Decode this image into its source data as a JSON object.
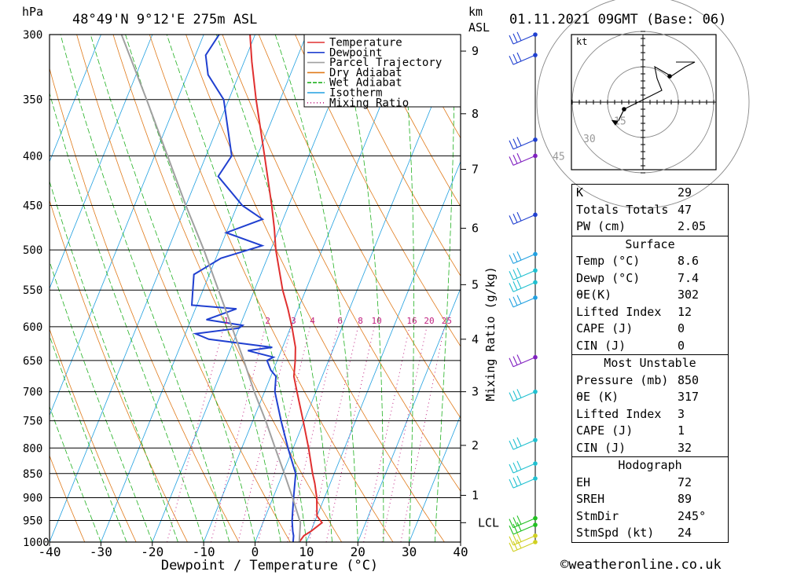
{
  "header": {
    "pressure_unit": "hPa",
    "location": "48°49'N  9°12'E  275m  ASL",
    "km_unit": "km",
    "asl_unit": "ASL",
    "datetime": "01.11.2021  09GMT  (Base: 06)"
  },
  "legend": [
    {
      "label": "Temperature",
      "color": "#e03030",
      "style": "solid"
    },
    {
      "label": "Dewpoint",
      "color": "#2040d0",
      "style": "solid"
    },
    {
      "label": "Parcel Trajectory",
      "color": "#a0a0a0",
      "style": "solid"
    },
    {
      "label": "Dry Adiabat",
      "color": "#e07a1a",
      "style": "solid"
    },
    {
      "label": "Wet Adiabat",
      "color": "#20b020",
      "style": "dashed"
    },
    {
      "label": "Isotherm",
      "color": "#20a0e0",
      "style": "solid"
    },
    {
      "label": "Mixing Ratio",
      "color": "#c02080",
      "style": "dotted"
    }
  ],
  "chart_data": {
    "type": "line",
    "subtype": "skew-t log-p sounding",
    "xlabel": "Dewpoint / Temperature (°C)",
    "ylabel": "hPa",
    "xlim": [
      -40,
      40
    ],
    "ylim": [
      1000,
      300
    ],
    "y_scale": "log",
    "x_ticks": [
      -40,
      -30,
      -20,
      -10,
      0,
      10,
      20,
      30,
      40
    ],
    "pressure_levels": [
      300,
      350,
      400,
      450,
      500,
      550,
      600,
      650,
      700,
      750,
      800,
      850,
      900,
      950,
      1000
    ],
    "height_axis": {
      "label": "km ASL",
      "ticks": [
        {
          "label": "9",
          "p": 312
        },
        {
          "label": "8",
          "p": 362
        },
        {
          "label": "7",
          "p": 413
        },
        {
          "label": "6",
          "p": 475
        },
        {
          "label": "5",
          "p": 543
        },
        {
          "label": "4",
          "p": 618
        },
        {
          "label": "3",
          "p": 700
        },
        {
          "label": "2",
          "p": 795
        },
        {
          "label": "1",
          "p": 895
        },
        {
          "label": "LCL",
          "p": 955
        }
      ]
    },
    "mixing_ratio_axis": {
      "label": "Mixing Ratio (g/kg)",
      "values": [
        "1",
        "2",
        "3",
        "4",
        "6",
        "8",
        "10",
        "16",
        "20",
        "25"
      ]
    },
    "series": [
      {
        "name": "Temperature",
        "color": "#e03030",
        "points": [
          [
            1000,
            8.6
          ],
          [
            985,
            9.0
          ],
          [
            975,
            10.0
          ],
          [
            955,
            11.5
          ],
          [
            940,
            10.0
          ],
          [
            900,
            8.5
          ],
          [
            870,
            7.0
          ],
          [
            850,
            5.8
          ],
          [
            800,
            3.0
          ],
          [
            750,
            -0.2
          ],
          [
            700,
            -3.7
          ],
          [
            675,
            -5.5
          ],
          [
            650,
            -6.5
          ],
          [
            630,
            -7.5
          ],
          [
            600,
            -9.8
          ],
          [
            575,
            -12.0
          ],
          [
            550,
            -14.5
          ],
          [
            500,
            -19.0
          ],
          [
            475,
            -21.0
          ],
          [
            450,
            -23.3
          ],
          [
            400,
            -28.6
          ],
          [
            350,
            -34.7
          ],
          [
            320,
            -38.5
          ],
          [
            300,
            -41.0
          ]
        ]
      },
      {
        "name": "Dewpoint",
        "color": "#2040d0",
        "points": [
          [
            1000,
            7.4
          ],
          [
            985,
            7.0
          ],
          [
            975,
            6.5
          ],
          [
            950,
            5.5
          ],
          [
            900,
            4.0
          ],
          [
            850,
            2.5
          ],
          [
            800,
            -1.0
          ],
          [
            750,
            -4.5
          ],
          [
            700,
            -8.0
          ],
          [
            675,
            -9.0
          ],
          [
            665,
            -10.5
          ],
          [
            650,
            -12.0
          ],
          [
            645,
            -11.0
          ],
          [
            635,
            -16.5
          ],
          [
            630,
            -12.0
          ],
          [
            618,
            -25.0
          ],
          [
            610,
            -28.0
          ],
          [
            602,
            -20.0
          ],
          [
            598,
            -19.5
          ],
          [
            590,
            -27.0
          ],
          [
            575,
            -22.0
          ],
          [
            570,
            -31.0
          ],
          [
            530,
            -33.0
          ],
          [
            510,
            -29.0
          ],
          [
            495,
            -22.0
          ],
          [
            480,
            -30.0
          ],
          [
            465,
            -24.0
          ],
          [
            450,
            -29.0
          ],
          [
            420,
            -36.0
          ],
          [
            400,
            -35.0
          ],
          [
            350,
            -41.0
          ],
          [
            330,
            -46.0
          ],
          [
            315,
            -48.0
          ],
          [
            300,
            -47.0
          ]
        ]
      },
      {
        "name": "Parcel Trajectory",
        "color": "#a0a0a0",
        "points": [
          [
            1000,
            8.6
          ],
          [
            955,
            7.3
          ],
          [
            900,
            3.8
          ],
          [
            850,
            0.3
          ],
          [
            800,
            -3.5
          ],
          [
            750,
            -7.5
          ],
          [
            700,
            -12.0
          ],
          [
            650,
            -16.5
          ],
          [
            600,
            -21.5
          ],
          [
            550,
            -27.0
          ],
          [
            500,
            -33.0
          ],
          [
            450,
            -40.0
          ],
          [
            400,
            -47.5
          ],
          [
            350,
            -56.0
          ],
          [
            300,
            -66.0
          ]
        ]
      }
    ],
    "wind_profile": [
      {
        "p": 300,
        "color": "#2040d0"
      },
      {
        "p": 315,
        "color": "#2040d0"
      },
      {
        "p": 385,
        "color": "#2040d0"
      },
      {
        "p": 400,
        "color": "#8020c0"
      },
      {
        "p": 460,
        "color": "#2040d0"
      },
      {
        "p": 505,
        "color": "#20a0e0"
      },
      {
        "p": 525,
        "color": "#20c0d0"
      },
      {
        "p": 540,
        "color": "#20c0d0"
      },
      {
        "p": 560,
        "color": "#20a0e0"
      },
      {
        "p": 645,
        "color": "#8020c0"
      },
      {
        "p": 700,
        "color": "#20c0d0"
      },
      {
        "p": 785,
        "color": "#20c0d0"
      },
      {
        "p": 830,
        "color": "#20c0d0"
      },
      {
        "p": 860,
        "color": "#20c0d0"
      },
      {
        "p": 945,
        "color": "#20c020"
      },
      {
        "p": 960,
        "color": "#20c020"
      },
      {
        "p": 985,
        "color": "#d0d020"
      },
      {
        "p": 1000,
        "color": "#d0d020"
      }
    ],
    "hodograph": {
      "unit": "kt",
      "rings": [
        15,
        30,
        45
      ],
      "path": [
        [
          -8,
          -3
        ],
        [
          2,
          2
        ],
        [
          8,
          5
        ],
        [
          6,
          10
        ],
        [
          5,
          15
        ],
        [
          12,
          11
        ],
        [
          18,
          15
        ],
        [
          22,
          17
        ],
        [
          14,
          17
        ]
      ],
      "storm_motion": {
        "dir_deg": 245,
        "speed_kt": 24
      }
    }
  },
  "indices": {
    "summary": [
      {
        "label": "K",
        "value": "29"
      },
      {
        "label": "Totals Totals",
        "value": "47"
      },
      {
        "label": "PW (cm)",
        "value": "2.05"
      }
    ],
    "surface": {
      "title": "Surface",
      "rows": [
        {
          "label": "Temp (°C)",
          "value": "8.6"
        },
        {
          "label": "Dewp (°C)",
          "value": "7.4"
        },
        {
          "label": "θE(K)",
          "value": "302"
        },
        {
          "label": "Lifted Index",
          "value": "12"
        },
        {
          "label": "CAPE (J)",
          "value": "0"
        },
        {
          "label": "CIN (J)",
          "value": "0"
        }
      ]
    },
    "most_unstable": {
      "title": "Most Unstable",
      "rows": [
        {
          "label": "Pressure (mb)",
          "value": "850"
        },
        {
          "label": "θE (K)",
          "value": "317"
        },
        {
          "label": "Lifted Index",
          "value": "3"
        },
        {
          "label": "CAPE (J)",
          "value": "1"
        },
        {
          "label": "CIN (J)",
          "value": "32"
        }
      ]
    },
    "hodograph_box": {
      "title": "Hodograph",
      "rows": [
        {
          "label": "EH",
          "value": "72"
        },
        {
          "label": "SREH",
          "value": "89"
        },
        {
          "label": "StmDir",
          "value": "245°"
        },
        {
          "label": "StmSpd (kt)",
          "value": "24"
        }
      ]
    }
  },
  "footer": {
    "credit": "©weatheronline.co.uk"
  }
}
